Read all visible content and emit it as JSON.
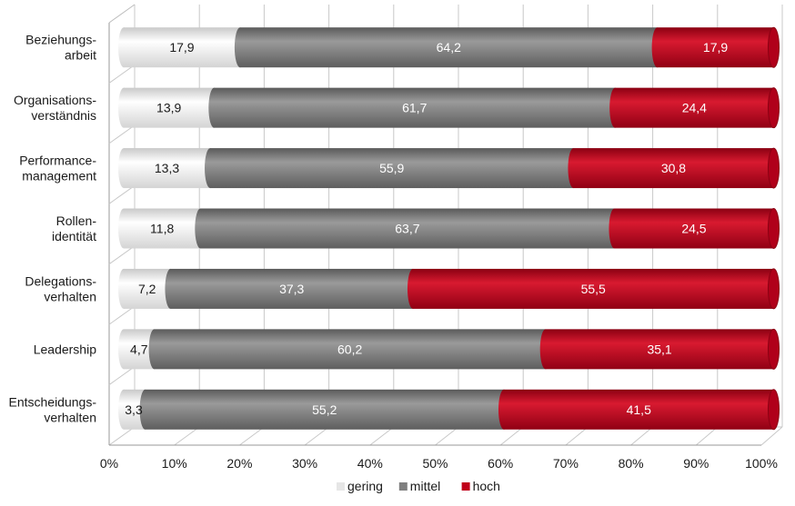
{
  "chart_data": {
    "type": "bar",
    "orientation": "horizontal",
    "stacked": true,
    "categories": [
      [
        "Beziehungs-",
        "arbeit"
      ],
      [
        "Organisations-",
        "verständnis"
      ],
      [
        "Performance-",
        "management"
      ],
      [
        "Rollen-",
        "identität"
      ],
      [
        "Delegations-",
        "verhalten"
      ],
      [
        "Leadership"
      ],
      [
        "Entscheidungs-",
        "verhalten"
      ]
    ],
    "series": [
      {
        "name": "gering",
        "color": "#e6e6e6",
        "values": [
          17.9,
          13.9,
          13.3,
          11.8,
          7.2,
          4.7,
          3.3
        ],
        "labels": [
          "17,9",
          "13,9",
          "13,3",
          "11,8",
          "7,2",
          "4,7",
          "3,3"
        ]
      },
      {
        "name": "mittel",
        "color": "#7f7f7f",
        "values": [
          64.2,
          61.7,
          55.9,
          63.7,
          37.3,
          60.2,
          55.2
        ],
        "labels": [
          "64,2",
          "61,7",
          "55,9",
          "63,7",
          "37,3",
          "60,2",
          "55,2"
        ]
      },
      {
        "name": "hoch",
        "color": "#c0001a",
        "values": [
          17.9,
          24.4,
          30.8,
          24.5,
          55.5,
          35.1,
          41.5
        ],
        "labels": [
          "17,9",
          "24,4",
          "30,8",
          "24,5",
          "55,5",
          "35,1",
          "41,5"
        ]
      }
    ],
    "xlim": [
      0,
      100
    ],
    "x_ticks": [
      "0%",
      "10%",
      "20%",
      "30%",
      "40%",
      "50%",
      "60%",
      "70%",
      "80%",
      "90%",
      "100%"
    ],
    "grid": true,
    "legend_position": "bottom",
    "style": "3d"
  }
}
